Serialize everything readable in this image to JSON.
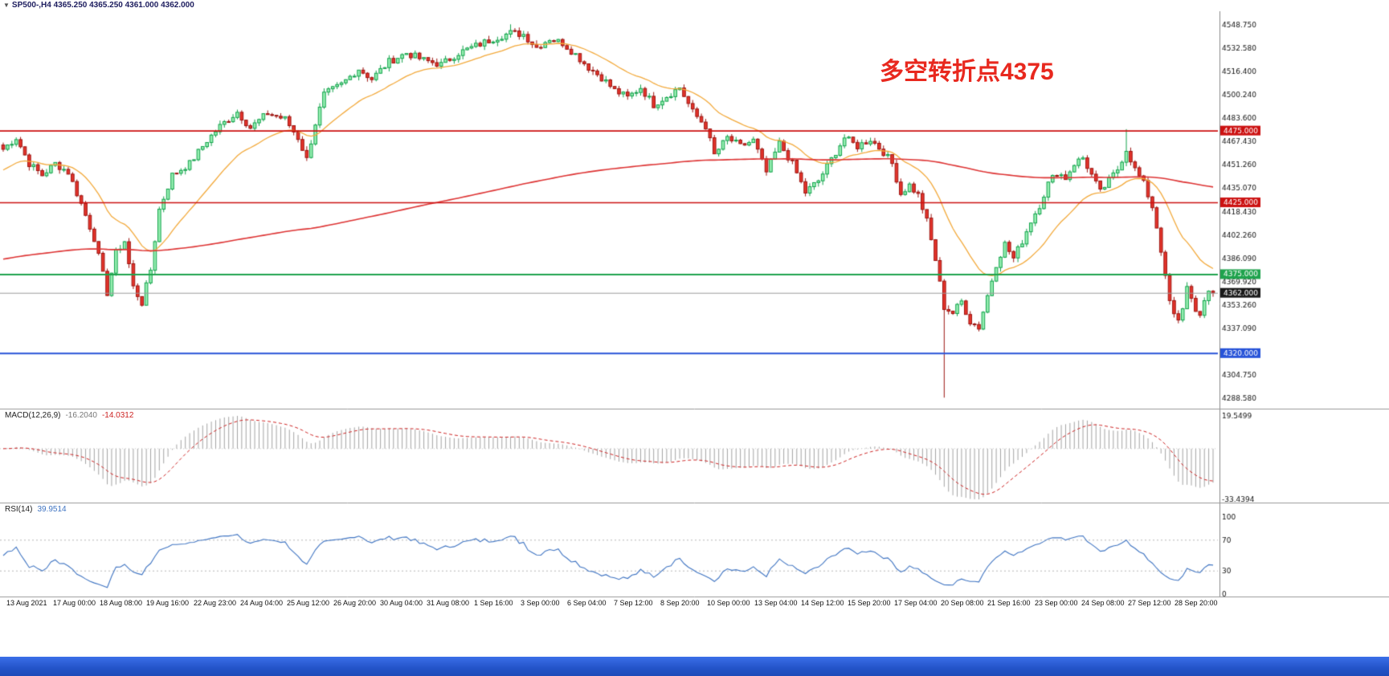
{
  "header": {
    "dropdown_glyph": "▼",
    "symbol_line": "SP500-,H4  4365.250 4365.250 4361.000 4362.000"
  },
  "annotation": {
    "text": "多空转折点4375",
    "color": "#e8281e"
  },
  "chart_data": {
    "type": "candlestick",
    "symbol": "SP500-",
    "timeframe": "H4",
    "ohlc_display": {
      "open": "4365.250",
      "high": "4365.250",
      "low": "4361.000",
      "close": "4362.000"
    },
    "price_axis": {
      "min": 4283,
      "max": 4557,
      "labels": [
        "4548.750",
        "4532.580",
        "4516.400",
        "4500.240",
        "4483.600",
        "4467.430",
        "4451.260",
        "4435.070",
        "4418.430",
        "4402.260",
        "4386.090",
        "4369.920",
        "4353.260",
        "4337.090",
        "4304.750",
        "4288.580"
      ]
    },
    "levels": [
      {
        "price": 4475.0,
        "label": "4475.000",
        "color": "#cc1111",
        "width": 1.6
      },
      {
        "price": 4425.0,
        "label": "4425.000",
        "color": "#cc1111",
        "width": 1.6
      },
      {
        "price": 4375.0,
        "label": "4375.000",
        "color": "#1fa34d",
        "width": 2
      },
      {
        "price": 4320.0,
        "label": "4320.000",
        "color": "#2753d8",
        "width": 2
      }
    ],
    "current_price": {
      "price": 4362.0,
      "label": "4362.000",
      "line_color": "#9a9a9a",
      "badge_bg": "#1a1a1a"
    },
    "candles": {
      "count": 280,
      "seed": 7,
      "volatility": 5,
      "bull": {
        "fill": "#97efb2",
        "border": "#12a24b"
      },
      "bear": {
        "fill": "#e5342b",
        "border": "#9c1410"
      },
      "anchors": [
        [
          0,
          4462
        ],
        [
          3,
          4470
        ],
        [
          6,
          4452
        ],
        [
          9,
          4444
        ],
        [
          12,
          4452
        ],
        [
          15,
          4446
        ],
        [
          18,
          4424
        ],
        [
          21,
          4400
        ],
        [
          24,
          4362
        ],
        [
          26,
          4390
        ],
        [
          28,
          4398
        ],
        [
          30,
          4366
        ],
        [
          32,
          4355
        ],
        [
          34,
          4378
        ],
        [
          36,
          4420
        ],
        [
          39,
          4444
        ],
        [
          43,
          4452
        ],
        [
          47,
          4468
        ],
        [
          50,
          4478
        ],
        [
          54,
          4488
        ],
        [
          57,
          4477
        ],
        [
          61,
          4487
        ],
        [
          65,
          4483
        ],
        [
          68,
          4470
        ],
        [
          70,
          4455
        ],
        [
          72,
          4480
        ],
        [
          74,
          4500
        ],
        [
          78,
          4507
        ],
        [
          82,
          4518
        ],
        [
          85,
          4511
        ],
        [
          89,
          4523
        ],
        [
          93,
          4529
        ],
        [
          97,
          4524
        ],
        [
          101,
          4521
        ],
        [
          105,
          4529
        ],
        [
          109,
          4534
        ],
        [
          113,
          4539
        ],
        [
          117,
          4543
        ],
        [
          120,
          4542
        ],
        [
          123,
          4533
        ],
        [
          126,
          4539
        ],
        [
          129,
          4536
        ],
        [
          132,
          4528
        ],
        [
          135,
          4519
        ],
        [
          138,
          4512
        ],
        [
          141,
          4503
        ],
        [
          144,
          4498
        ],
        [
          147,
          4505
        ],
        [
          150,
          4493
        ],
        [
          153,
          4499
        ],
        [
          156,
          4505
        ],
        [
          159,
          4488
        ],
        [
          162,
          4478
        ],
        [
          164,
          4458
        ],
        [
          167,
          4470
        ],
        [
          170,
          4464
        ],
        [
          173,
          4468
        ],
        [
          176,
          4446
        ],
        [
          179,
          4466
        ],
        [
          182,
          4452
        ],
        [
          185,
          4432
        ],
        [
          188,
          4440
        ],
        [
          191,
          4455
        ],
        [
          194,
          4470
        ],
        [
          197,
          4464
        ],
        [
          200,
          4469
        ],
        [
          203,
          4460
        ],
        [
          205,
          4452
        ],
        [
          207,
          4431
        ],
        [
          209,
          4437
        ],
        [
          211,
          4430
        ],
        [
          213,
          4412
        ],
        [
          215,
          4385
        ],
        [
          217,
          4352
        ],
        [
          219,
          4348
        ],
        [
          221,
          4356
        ],
        [
          223,
          4342
        ],
        [
          225,
          4338
        ],
        [
          227,
          4360
        ],
        [
          229,
          4382
        ],
        [
          231,
          4396
        ],
        [
          233,
          4386
        ],
        [
          235,
          4398
        ],
        [
          237,
          4412
        ],
        [
          239,
          4423
        ],
        [
          241,
          4438
        ],
        [
          243,
          4446
        ],
        [
          245,
          4442
        ],
        [
          247,
          4452
        ],
        [
          249,
          4456
        ],
        [
          251,
          4444
        ],
        [
          253,
          4432
        ],
        [
          255,
          4440
        ],
        [
          257,
          4448
        ],
        [
          259,
          4462
        ],
        [
          261,
          4448
        ],
        [
          263,
          4438
        ],
        [
          265,
          4422
        ],
        [
          266,
          4408
        ],
        [
          267,
          4392
        ],
        [
          268,
          4372
        ],
        [
          269,
          4356
        ],
        [
          270,
          4346
        ],
        [
          271,
          4342
        ],
        [
          272,
          4352
        ],
        [
          273,
          4366
        ],
        [
          274,
          4360
        ],
        [
          275,
          4348
        ],
        [
          276,
          4344
        ],
        [
          277,
          4356
        ],
        [
          278,
          4364
        ],
        [
          279,
          4362
        ]
      ],
      "wick_overrides": [
        {
          "i": 217,
          "low": 4289
        },
        {
          "i": 117,
          "high": 4549
        },
        {
          "i": 259,
          "high": 4476
        }
      ]
    },
    "moving_averages": [
      {
        "period": 20,
        "seed": 4446,
        "color": "#f2a93b",
        "width": 1.3
      },
      {
        "period": 320,
        "seed": 4385,
        "color": "#dd3333",
        "width": 1.6
      }
    ],
    "time_axis": {
      "labels": [
        "13 Aug 2021",
        "17 Aug 00:00",
        "18 Aug 08:00",
        "19 Aug 16:00",
        "22 Aug 23:00",
        "24 Aug 04:00",
        "25 Aug 12:00",
        "26 Aug 20:00",
        "30 Aug 04:00",
        "31 Aug 08:00",
        "1 Sep 16:00",
        "3 Sep 00:00",
        "6 Sep 04:00",
        "7 Sep 12:00",
        "8 Sep 20:00",
        "10 Sep 00:00",
        "13 Sep 04:00",
        "14 Sep 12:00",
        "15 Sep 20:00",
        "17 Sep 04:00",
        "20 Sep 08:00",
        "21 Sep 16:00",
        "23 Sep 00:00",
        "24 Sep 08:00",
        "27 Sep 12:00",
        "28 Sep 20:00"
      ]
    },
    "macd": {
      "title": "MACD(12,26,9)",
      "value_main": "-16.2040",
      "value_signal": "-14.0312",
      "fast": 12,
      "slow": 26,
      "signal": 9,
      "axis_top": "19.5499",
      "axis_bottom": "-33.4394",
      "hist_color": "#a3a3a3",
      "signal_color": "#cc2222"
    },
    "rsi": {
      "title": "RSI(14)",
      "value": "39.9514",
      "period": 14,
      "levels": [
        70,
        30
      ],
      "axis_values": [
        100,
        70,
        30,
        0
      ],
      "axis_labels": [
        "100",
        "70",
        "30",
        "0"
      ],
      "line_color": "#3f74c2"
    }
  },
  "taskbar": {
    "color": "#2a5ad0"
  }
}
